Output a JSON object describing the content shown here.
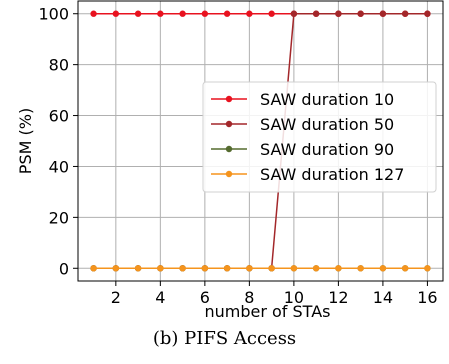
{
  "chart_data": {
    "type": "line",
    "xlabel": "number of STAs",
    "ylabel": "PSM (%)",
    "xlim": [
      0.3,
      16.7
    ],
    "ylim": [
      -5,
      105
    ],
    "xticks": [
      2,
      4,
      6,
      8,
      10,
      12,
      14,
      16
    ],
    "yticks": [
      0,
      20,
      40,
      60,
      80,
      100
    ],
    "grid": true,
    "legend": "center-right",
    "x": [
      1,
      2,
      3,
      4,
      5,
      6,
      7,
      8,
      9,
      10,
      11,
      12,
      13,
      14,
      15,
      16
    ],
    "series": [
      {
        "name": "SAW duration 10",
        "color": "#e8121f",
        "values": [
          100,
          100,
          100,
          100,
          100,
          100,
          100,
          100,
          100,
          100,
          100,
          100,
          100,
          100,
          100,
          100
        ]
      },
      {
        "name": "SAW duration 50",
        "color": "#a3272a",
        "values": [
          0,
          0,
          0,
          0,
          0,
          0,
          0,
          0,
          0,
          100,
          100,
          100,
          100,
          100,
          100,
          100
        ]
      },
      {
        "name": "SAW duration 90",
        "color": "#556b2f",
        "values": [
          0,
          0,
          0,
          0,
          0,
          0,
          0,
          0,
          0,
          0,
          0,
          0,
          0,
          0,
          0,
          0
        ]
      },
      {
        "name": "SAW duration 127",
        "color": "#f5941d",
        "values": [
          0,
          0,
          0,
          0,
          0,
          0,
          0,
          0,
          0,
          0,
          0,
          0,
          0,
          0,
          0,
          0
        ]
      }
    ]
  },
  "caption": "(b) PIFS Access"
}
